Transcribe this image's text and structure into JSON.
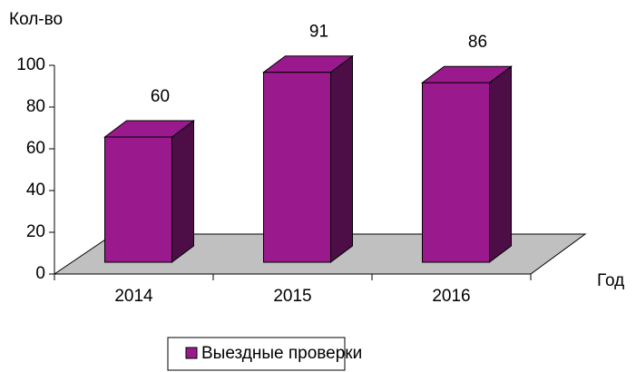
{
  "chart_data": {
    "type": "bar3d",
    "y_label": "Кол-во",
    "x_label": "Год",
    "categories": [
      "2014",
      "2015",
      "2016"
    ],
    "series": [
      {
        "name": "Выездные проверки",
        "color": "#9a1a8e",
        "values": [
          60,
          91,
          86
        ]
      }
    ],
    "ylim": [
      0,
      100
    ],
    "yticks": [
      0,
      20,
      40,
      60,
      80,
      100
    ]
  }
}
